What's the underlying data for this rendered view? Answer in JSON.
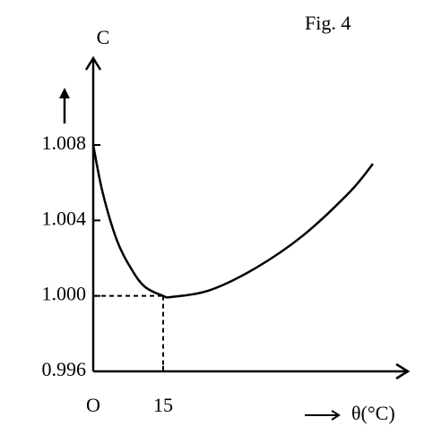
{
  "chart_data": {
    "type": "line",
    "title": "Fig. 4",
    "y_label": "C",
    "x_label": "θ(°C)",
    "x": [
      0,
      2,
      5,
      8,
      11,
      15,
      17,
      25,
      35,
      45,
      55,
      60
    ],
    "series": [
      {
        "name": "C",
        "color": "#000000",
        "values": [
          1.008,
          1.0055,
          1.003,
          1.0015,
          1.0005,
          1.0,
          0.99995,
          1.0003,
          1.0015,
          1.0032,
          1.0055,
          1.007
        ]
      }
    ],
    "xlim": [
      0,
      67.5
    ],
    "ylim": [
      0.996,
      1.0126
    ],
    "xticks": [
      {
        "value": 0,
        "label": "O"
      },
      15
    ],
    "yticks": [
      {
        "value": 0.996,
        "label": "0.996"
      },
      {
        "value": 1.0,
        "label": "1.000"
      },
      {
        "value": 1.004,
        "label": "1.004"
      },
      {
        "value": 1.008,
        "label": "1.008"
      }
    ],
    "guide_lines": true
  }
}
